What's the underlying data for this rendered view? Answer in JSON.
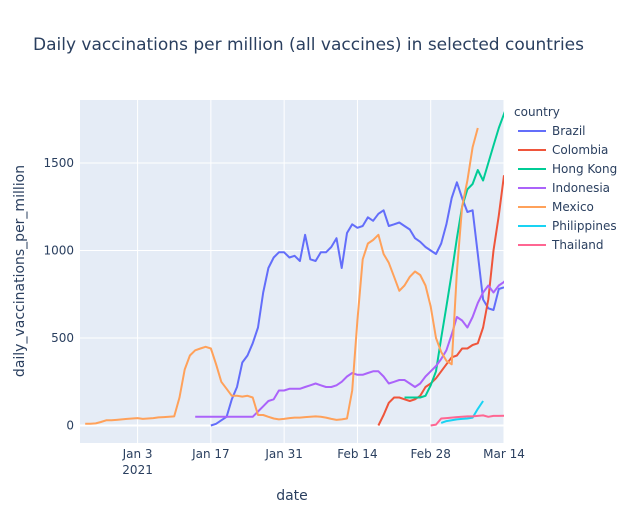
{
  "chart_data": {
    "type": "line",
    "title": "Daily vaccinations per million (all vaccines) in selected countries",
    "xlabel": "date",
    "ylabel": "daily_vaccinations_per_million",
    "x_range": [
      "2020-12-23",
      "2021-03-14"
    ],
    "ylim": [
      -100,
      1860
    ],
    "x_ticks": [
      {
        "date": "2021-01-03",
        "label": "Jan 3",
        "sublabel": "2021"
      },
      {
        "date": "2021-01-17",
        "label": "Jan 17",
        "sublabel": ""
      },
      {
        "date": "2021-01-31",
        "label": "Jan 31",
        "sublabel": ""
      },
      {
        "date": "2021-02-14",
        "label": "Feb 14",
        "sublabel": ""
      },
      {
        "date": "2021-02-28",
        "label": "Feb 28",
        "sublabel": ""
      },
      {
        "date": "2021-03-14",
        "label": "Mar 14",
        "sublabel": ""
      }
    ],
    "y_ticks": [
      0,
      500,
      1000,
      1500
    ],
    "grid": true,
    "plot_background": "#e5ecf6",
    "legend_title": "country",
    "legend_position": "right",
    "series": [
      {
        "name": "Brazil",
        "color": "#636efa",
        "start": "2021-01-17",
        "values": [
          0,
          10,
          30,
          50,
          150,
          220,
          360,
          400,
          470,
          560,
          760,
          900,
          960,
          990,
          990,
          960,
          970,
          940,
          1090,
          950,
          940,
          990,
          990,
          1020,
          1070,
          900,
          1100,
          1150,
          1130,
          1140,
          1190,
          1170,
          1210,
          1230,
          1140,
          1150,
          1160,
          1140,
          1120,
          1070,
          1050,
          1020,
          1000,
          980,
          1040,
          1150,
          1300,
          1390,
          1300,
          1220,
          1230,
          980,
          720,
          670,
          660,
          780,
          790
        ]
      },
      {
        "name": "Colombia",
        "color": "#ef553b",
        "start": "2021-02-18",
        "values": [
          0,
          60,
          130,
          160,
          160,
          150,
          140,
          150,
          170,
          220,
          240,
          270,
          310,
          350,
          390,
          400,
          440,
          440,
          460,
          470,
          560,
          720,
          1000,
          1200,
          1430
        ]
      },
      {
        "name": "Hong Kong",
        "color": "#00cc96",
        "start": "2021-02-23",
        "values": [
          160,
          160,
          160,
          160,
          170,
          230,
          310,
          500,
          680,
          870,
          1070,
          1250,
          1350,
          1380,
          1460,
          1400,
          1500,
          1600,
          1700,
          1780,
          1860
        ]
      },
      {
        "name": "Indonesia",
        "color": "#ab63fa",
        "start": "2021-01-14",
        "values": [
          50,
          50,
          50,
          50,
          50,
          50,
          50,
          50,
          50,
          50,
          50,
          50,
          80,
          110,
          140,
          150,
          200,
          200,
          210,
          210,
          210,
          220,
          230,
          240,
          230,
          220,
          220,
          230,
          250,
          280,
          300,
          290,
          290,
          300,
          310,
          310,
          280,
          240,
          250,
          260,
          260,
          240,
          220,
          240,
          280,
          310,
          340,
          380,
          430,
          520,
          620,
          600,
          560,
          620,
          700,
          760,
          800,
          760,
          800,
          820,
          860,
          770
        ]
      },
      {
        "name": "Mexico",
        "color": "#ffa15a",
        "start": "2020-12-24",
        "values": [
          10,
          10,
          12,
          20,
          30,
          30,
          32,
          35,
          38,
          40,
          42,
          38,
          40,
          42,
          46,
          48,
          50,
          52,
          160,
          320,
          400,
          430,
          440,
          450,
          440,
          350,
          250,
          210,
          170,
          170,
          165,
          170,
          160,
          60,
          60,
          50,
          40,
          35,
          38,
          42,
          45,
          45,
          48,
          50,
          52,
          50,
          45,
          38,
          32,
          35,
          40,
          200,
          600,
          950,
          1040,
          1060,
          1090,
          980,
          930,
          850,
          770,
          800,
          850,
          880,
          860,
          800,
          680,
          500,
          420,
          370,
          350,
          880,
          1250,
          1400,
          1590,
          1700
        ]
      },
      {
        "name": "Philippines",
        "color": "#19d3f3",
        "start": "2021-03-02",
        "values": [
          15,
          25,
          30,
          35,
          38,
          40,
          45,
          95,
          140
        ]
      },
      {
        "name": "Thailand",
        "color": "#ff6692",
        "start": "2021-02-28",
        "values": [
          0,
          5,
          40,
          42,
          45,
          48,
          50,
          52,
          52,
          55,
          58,
          50,
          55,
          55,
          56
        ]
      }
    ]
  }
}
